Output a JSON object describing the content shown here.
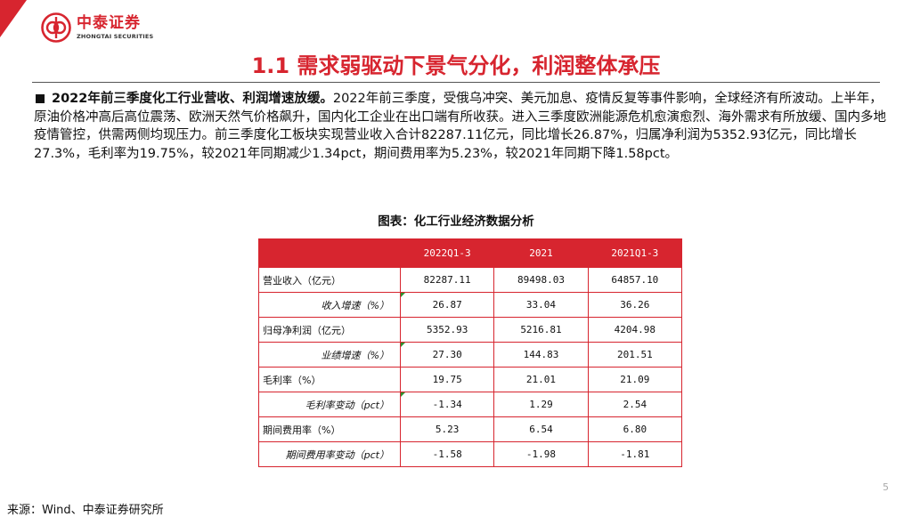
{
  "brand": {
    "name_cn": "中泰证券",
    "name_en": "ZHONGTAI SECURITIES",
    "color": "#d7252f",
    "icon": "zhongtai-logo-icon"
  },
  "title": "1.1 需求弱驱动下景气分化，利润整体承压",
  "bullet": {
    "lead": "2022年前三季度化工行业营收、利润增速放缓。",
    "body": "2022年前三季度，受俄乌冲突、美元加息、疫情反复等事件影响，全球经济有所波动。上半年，原油价格冲高后高位震荡、欧洲天然气价格飙升，国内化工企业在出口端有所收获。进入三季度欧洲能源危机愈演愈烈、海外需求有所放缓、国内多地疫情管控，供需两侧均现压力。前三季度化工板块实现营业收入合计82287.11亿元，同比增长26.87%，归属净利润为5352.93亿元，同比增长27.3%，毛利率为19.75%，较2021年同期减少1.34pct，期间费用率为5.23%，较2021年同期下降1.58pct。"
  },
  "table": {
    "caption": "图表：化工行业经济数据分析",
    "headers": [
      "",
      "2022Q1-3",
      "2021",
      "2021Q1-3"
    ],
    "rows": [
      {
        "label": "营业收入（亿元）",
        "values": [
          "82287.11",
          "89498.03",
          "64857.10"
        ]
      },
      {
        "label": "收入增速（%）",
        "values": [
          "26.87",
          "33.04",
          "36.26"
        ]
      },
      {
        "label": "归母净利润（亿元）",
        "values": [
          "5352.93",
          "5216.81",
          "4204.98"
        ]
      },
      {
        "label": "业绩增速（%）",
        "values": [
          "27.30",
          "144.83",
          "201.51"
        ]
      },
      {
        "label": "毛利率（%）",
        "values": [
          "19.75",
          "21.01",
          "21.09"
        ]
      },
      {
        "label": "毛利率变动（pct）",
        "values": [
          "-1.34",
          "1.29",
          "2.54"
        ]
      },
      {
        "label": "期间费用率（%）",
        "values": [
          "5.23",
          "6.54",
          "6.80"
        ]
      },
      {
        "label": "期间费用率变动（pct）",
        "values": [
          "-1.58",
          "-1.98",
          "-1.81"
        ]
      }
    ]
  },
  "page_number": "5",
  "source": "来源：Wind、中泰证券研究所"
}
